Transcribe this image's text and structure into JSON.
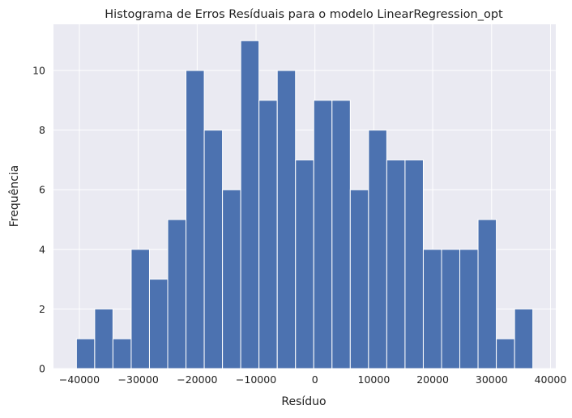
{
  "chart_data": {
    "type": "bar",
    "title": "Histograma de Erros Resíduais para o modelo LinearRegression_opt",
    "xlabel": "Resíduo",
    "ylabel": "Frequência",
    "bins": [
      {
        "x0": -40500,
        "x1": -37400,
        "count": 1
      },
      {
        "x0": -37400,
        "x1": -34300,
        "count": 2
      },
      {
        "x0": -34300,
        "x1": -31200,
        "count": 1
      },
      {
        "x0": -31200,
        "x1": -28100,
        "count": 4
      },
      {
        "x0": -28100,
        "x1": -25000,
        "count": 3
      },
      {
        "x0": -25000,
        "x1": -21900,
        "count": 5
      },
      {
        "x0": -21900,
        "x1": -18800,
        "count": 10
      },
      {
        "x0": -18800,
        "x1": -15700,
        "count": 8
      },
      {
        "x0": -15700,
        "x1": -12600,
        "count": 6
      },
      {
        "x0": -12600,
        "x1": -9500,
        "count": 11
      },
      {
        "x0": -9500,
        "x1": -6400,
        "count": 9
      },
      {
        "x0": -6400,
        "x1": -3300,
        "count": 10
      },
      {
        "x0": -3300,
        "x1": -200,
        "count": 7
      },
      {
        "x0": -200,
        "x1": 2900,
        "count": 9
      },
      {
        "x0": 2900,
        "x1": 6000,
        "count": 9
      },
      {
        "x0": 6000,
        "x1": 9100,
        "count": 6
      },
      {
        "x0": 9100,
        "x1": 12200,
        "count": 8
      },
      {
        "x0": 12200,
        "x1": 15300,
        "count": 7
      },
      {
        "x0": 15300,
        "x1": 18400,
        "count": 7
      },
      {
        "x0": 18400,
        "x1": 21500,
        "count": 4
      },
      {
        "x0": 21500,
        "x1": 24600,
        "count": 4
      },
      {
        "x0": 24600,
        "x1": 27700,
        "count": 4
      },
      {
        "x0": 27700,
        "x1": 30800,
        "count": 5
      },
      {
        "x0": 30800,
        "x1": 33900,
        "count": 1
      },
      {
        "x0": 33900,
        "x1": 37000,
        "count": 2
      }
    ],
    "xticks": [
      -40000,
      -30000,
      -20000,
      -10000,
      0,
      10000,
      20000,
      30000,
      40000
    ],
    "xtick_labels": [
      "−40000",
      "−30000",
      "−20000",
      "−10000",
      "0",
      "10000",
      "20000",
      "30000",
      "40000"
    ],
    "yticks": [
      0,
      2,
      4,
      6,
      8,
      10
    ],
    "ytick_labels": [
      "0",
      "2",
      "4",
      "6",
      "8",
      "10"
    ],
    "xlim": [
      -44400,
      40900
    ],
    "ylim": [
      0,
      11.55
    ],
    "grid": true,
    "legend": "none",
    "colors": {
      "bar": "#4c72b0",
      "bar_edge": "#ffffff",
      "plot_background": "#eaeaf2",
      "grid": "#ffffff"
    }
  }
}
